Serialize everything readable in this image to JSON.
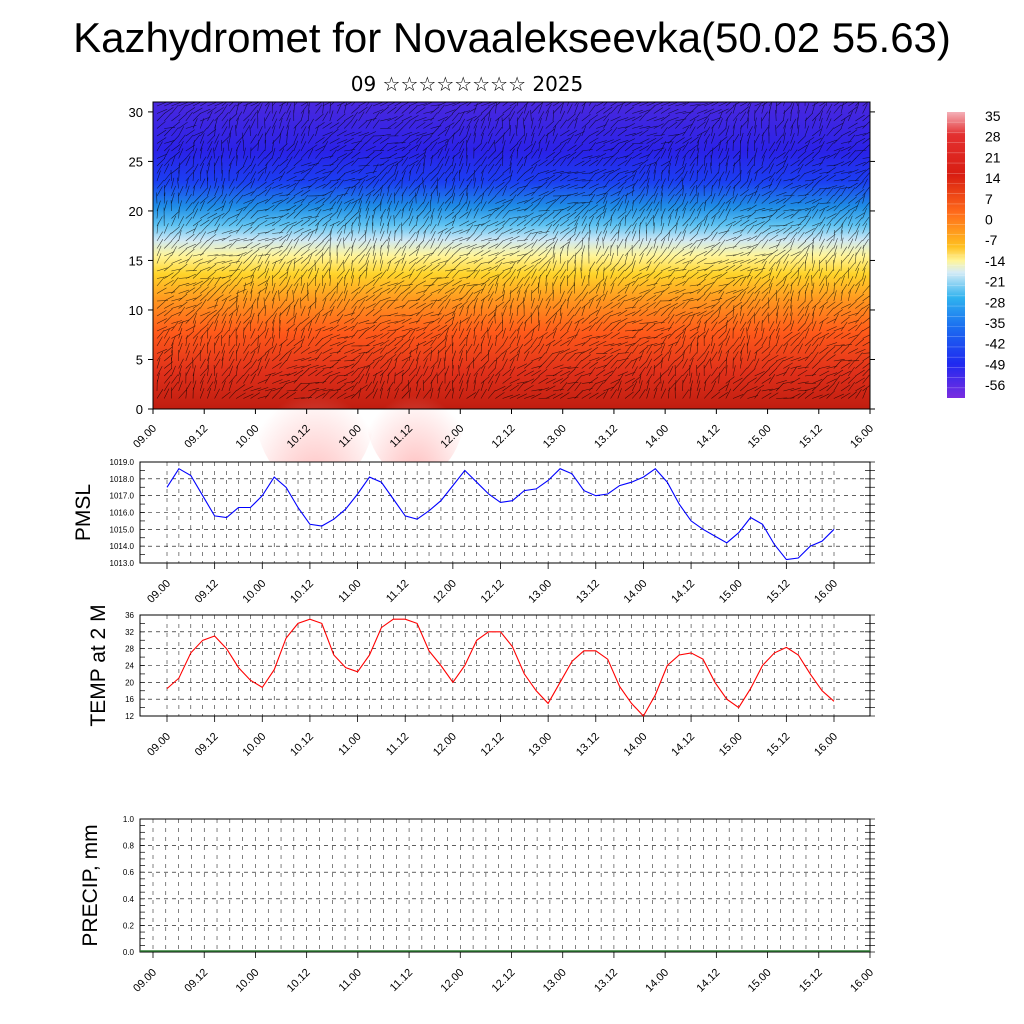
{
  "title": "Kazhydromet for Novaalekseevka(50.02 55.63)",
  "subtitle": "09 ☆☆☆☆☆☆☆☆ 2025",
  "x_ticks": [
    "09.00",
    "09.12",
    "10.00",
    "10.12",
    "11.00",
    "11.12",
    "12.00",
    "12.12",
    "13.00",
    "13.12",
    "14.00",
    "14.12",
    "15.00",
    "15.12",
    "16.00"
  ],
  "chart_data": [
    {
      "type": "heatmap",
      "y_ticks": [
        "0",
        "5",
        "10",
        "15",
        "20",
        "25",
        "30"
      ],
      "ylim": [
        0,
        31
      ],
      "colorbar_labels": [
        "35",
        "28",
        "21",
        "14",
        "7",
        "0",
        "-7",
        "-14",
        "-21",
        "-28",
        "-35",
        "-42",
        "-49",
        "-56"
      ],
      "overlay": "wind barbs"
    },
    {
      "type": "line",
      "ylabel": "PMSL",
      "ylim": [
        1013.0,
        1019.0
      ],
      "y_ticks": [
        "1013.0",
        "1014.0",
        "1015.0",
        "1016.0",
        "1017.0",
        "1018.0",
        "1019.0"
      ],
      "color": "#0000ff",
      "values": [
        1017.5,
        1018.6,
        1018.2,
        1017.0,
        1015.8,
        1015.7,
        1016.3,
        1016.3,
        1017.0,
        1018.1,
        1017.5,
        1016.3,
        1015.3,
        1015.2,
        1015.6,
        1016.2,
        1017.1,
        1018.1,
        1017.8,
        1016.8,
        1015.8,
        1015.6,
        1016.1,
        1016.7,
        1017.6,
        1018.5,
        1017.8,
        1017.1,
        1016.6,
        1016.7,
        1017.3,
        1017.4,
        1017.9,
        1018.6,
        1018.3,
        1017.3,
        1017.0,
        1017.1,
        1017.6,
        1017.8,
        1018.1,
        1018.6,
        1017.8,
        1016.5,
        1015.5,
        1015.0,
        1014.6,
        1014.2,
        1014.8,
        1015.7,
        1015.3,
        1014.1,
        1013.2,
        1013.3,
        1014.0,
        1014.3,
        1015.0
      ]
    },
    {
      "type": "line",
      "ylabel": "TEMP at 2 M",
      "ylim": [
        12,
        36
      ],
      "y_ticks": [
        "12",
        "16",
        "20",
        "24",
        "28",
        "32",
        "36"
      ],
      "color": "#ff0000",
      "values": [
        18.5,
        21,
        27,
        30,
        31,
        28,
        23.5,
        20.5,
        18.8,
        23,
        30.5,
        34,
        35,
        34,
        26.5,
        23.5,
        22.5,
        26.5,
        33,
        35,
        35,
        34,
        27.5,
        24,
        20,
        24,
        30,
        32,
        32,
        28.5,
        22,
        18,
        15,
        20,
        25,
        27.5,
        27.5,
        25.5,
        19,
        15,
        12,
        17,
        24,
        26.5,
        27,
        25.5,
        20,
        16,
        14,
        18.5,
        24,
        27,
        28.3,
        26.5,
        22,
        18,
        15.5
      ]
    },
    {
      "type": "line",
      "ylabel": "PRECIP, mm",
      "ylim": [
        0.0,
        1.0
      ],
      "y_ticks": [
        "0.0",
        "0.2",
        "0.4",
        "0.6",
        "0.8",
        "1.0"
      ],
      "values": []
    }
  ],
  "colors": {
    "pmsl_line": "#0000ff",
    "temp_line": "#ff0000",
    "precip_baseline": "#2e7d32"
  }
}
